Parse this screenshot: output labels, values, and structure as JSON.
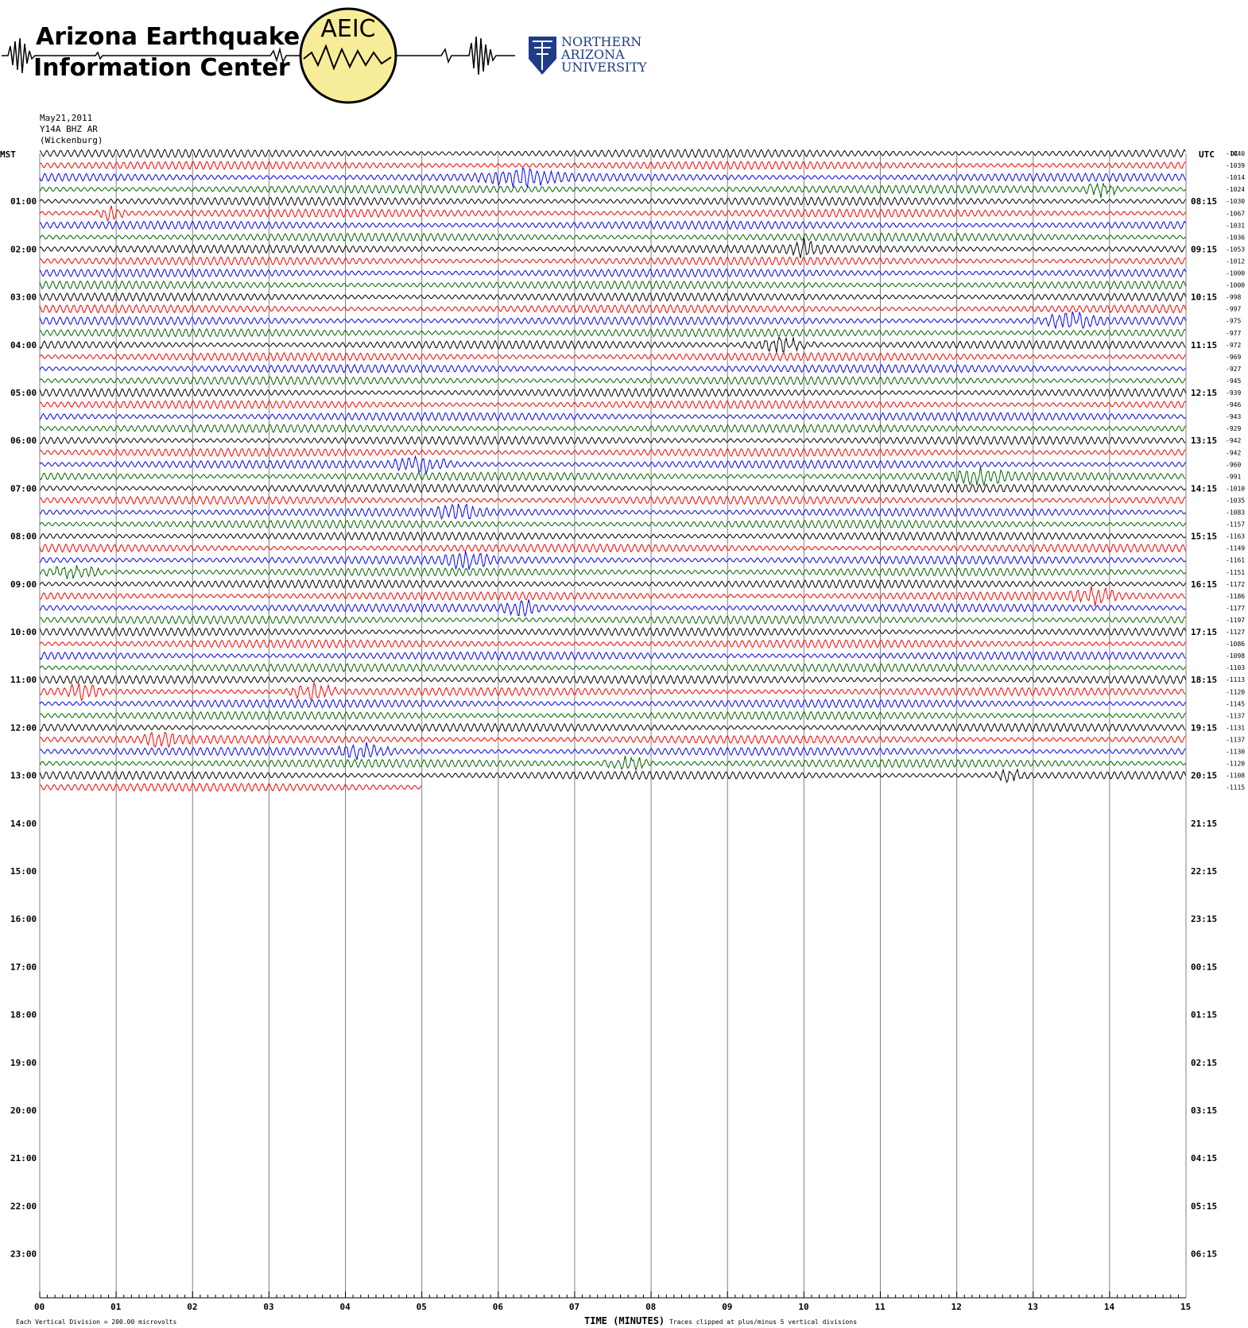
{
  "header": {
    "org_line1": "Arizona Earthquake",
    "org_line2": "Information Center",
    "logo_text": "AEIC",
    "university_line1": "NORTHERN",
    "university_line2": "ARIZONA",
    "university_line3": "UNIVERSITY"
  },
  "station": {
    "date": "May21,2011",
    "channel": "Y14A BHZ AR",
    "location": "(Wickenburg)"
  },
  "colors": {
    "trace_cycle": [
      "#000000",
      "#ff0000",
      "#0000ff",
      "#006400"
    ],
    "grid": "#808080",
    "logo_fill": "#f7ec9a",
    "nau_blue": "#1f3c88"
  },
  "chart_data": {
    "type": "line",
    "title": "May21,2011 Y14A BHZ AR (Wickenburg)",
    "xlabel": "TIME (MINUTES)",
    "left_axis_title": "MST",
    "right_axis_title": "UTC",
    "dc_header": "DC",
    "x_ticks": [
      "00",
      "01",
      "02",
      "03",
      "04",
      "05",
      "06",
      "07",
      "08",
      "09",
      "10",
      "11",
      "12",
      "13",
      "14",
      "15"
    ],
    "xlim": [
      0,
      15
    ],
    "mst_labels": [
      "01:00",
      "02:00",
      "03:00",
      "04:00",
      "05:00",
      "06:00",
      "07:00",
      "08:00",
      "09:00",
      "10:00",
      "11:00",
      "12:00",
      "13:00",
      "14:00",
      "15:00",
      "16:00",
      "17:00",
      "18:00",
      "19:00",
      "20:00",
      "21:00",
      "22:00",
      "23:00"
    ],
    "utc_labels": [
      "08:15",
      "09:15",
      "10:15",
      "11:15",
      "12:15",
      "13:15",
      "14:15",
      "15:15",
      "16:15",
      "17:15",
      "18:15",
      "19:15",
      "20:15",
      "21:15",
      "22:15",
      "23:15",
      "00:15",
      "01:15",
      "02:15",
      "03:15",
      "04:15",
      "05:15",
      "06:15"
    ],
    "lines_per_hour": 4,
    "minutes_per_line": 15,
    "recorded_lines": 54,
    "last_line_end_minute": 5,
    "dc_offsets": [
      -1040,
      -1039,
      -1014,
      -1024,
      -1030,
      -1067,
      -1031,
      -1036,
      -1053,
      -1012,
      -1000,
      -1000,
      -998,
      -997,
      -975,
      -977,
      -972,
      -969,
      -927,
      -945,
      -939,
      -946,
      -943,
      -929,
      -942,
      -942,
      -960,
      -991,
      -1010,
      -1035,
      -1083,
      -1157,
      -1163,
      -1149,
      -1161,
      -1151,
      -1172,
      -1186,
      -1177,
      -1197,
      -1127,
      -1086,
      -1098,
      -1103,
      -1113,
      -1120,
      -1145,
      -1137,
      -1131,
      -1137,
      -1130,
      -1120,
      -1108,
      -1115
    ],
    "events": [
      {
        "line": 2,
        "start_min": 5.6,
        "end_min": 7.0
      },
      {
        "line": 3,
        "start_min": 13.6,
        "end_min": 14.2
      },
      {
        "line": 5,
        "start_min": 0.7,
        "end_min": 1.2
      },
      {
        "line": 8,
        "start_min": 9.7,
        "end_min": 10.3
      },
      {
        "line": 14,
        "start_min": 13.0,
        "end_min": 14.0
      },
      {
        "line": 16,
        "start_min": 9.1,
        "end_min": 10.3
      },
      {
        "line": 26,
        "start_min": 4.5,
        "end_min": 5.5
      },
      {
        "line": 27,
        "start_min": 11.8,
        "end_min": 12.8
      },
      {
        "line": 30,
        "start_min": 5.1,
        "end_min": 5.9
      },
      {
        "line": 34,
        "start_min": 5.2,
        "end_min": 6.0
      },
      {
        "line": 35,
        "start_min": 0.0,
        "end_min": 0.9
      },
      {
        "line": 37,
        "start_min": 13.4,
        "end_min": 14.2
      },
      {
        "line": 38,
        "start_min": 6.0,
        "end_min": 6.6
      },
      {
        "line": 45,
        "start_min": 0.2,
        "end_min": 0.9
      },
      {
        "line": 45,
        "start_min": 3.1,
        "end_min": 4.0
      },
      {
        "line": 49,
        "start_min": 1.3,
        "end_min": 2.0
      },
      {
        "line": 50,
        "start_min": 3.8,
        "end_min": 4.7
      },
      {
        "line": 51,
        "start_min": 7.3,
        "end_min": 8.1
      },
      {
        "line": 52,
        "start_min": 12.4,
        "end_min": 13.0
      }
    ]
  },
  "footer": {
    "vertical_division": "Each Vertical Division =  200.00 microvolts",
    "clipping_note": "Traces clipped at plus/minus 5 vertical divisions"
  }
}
